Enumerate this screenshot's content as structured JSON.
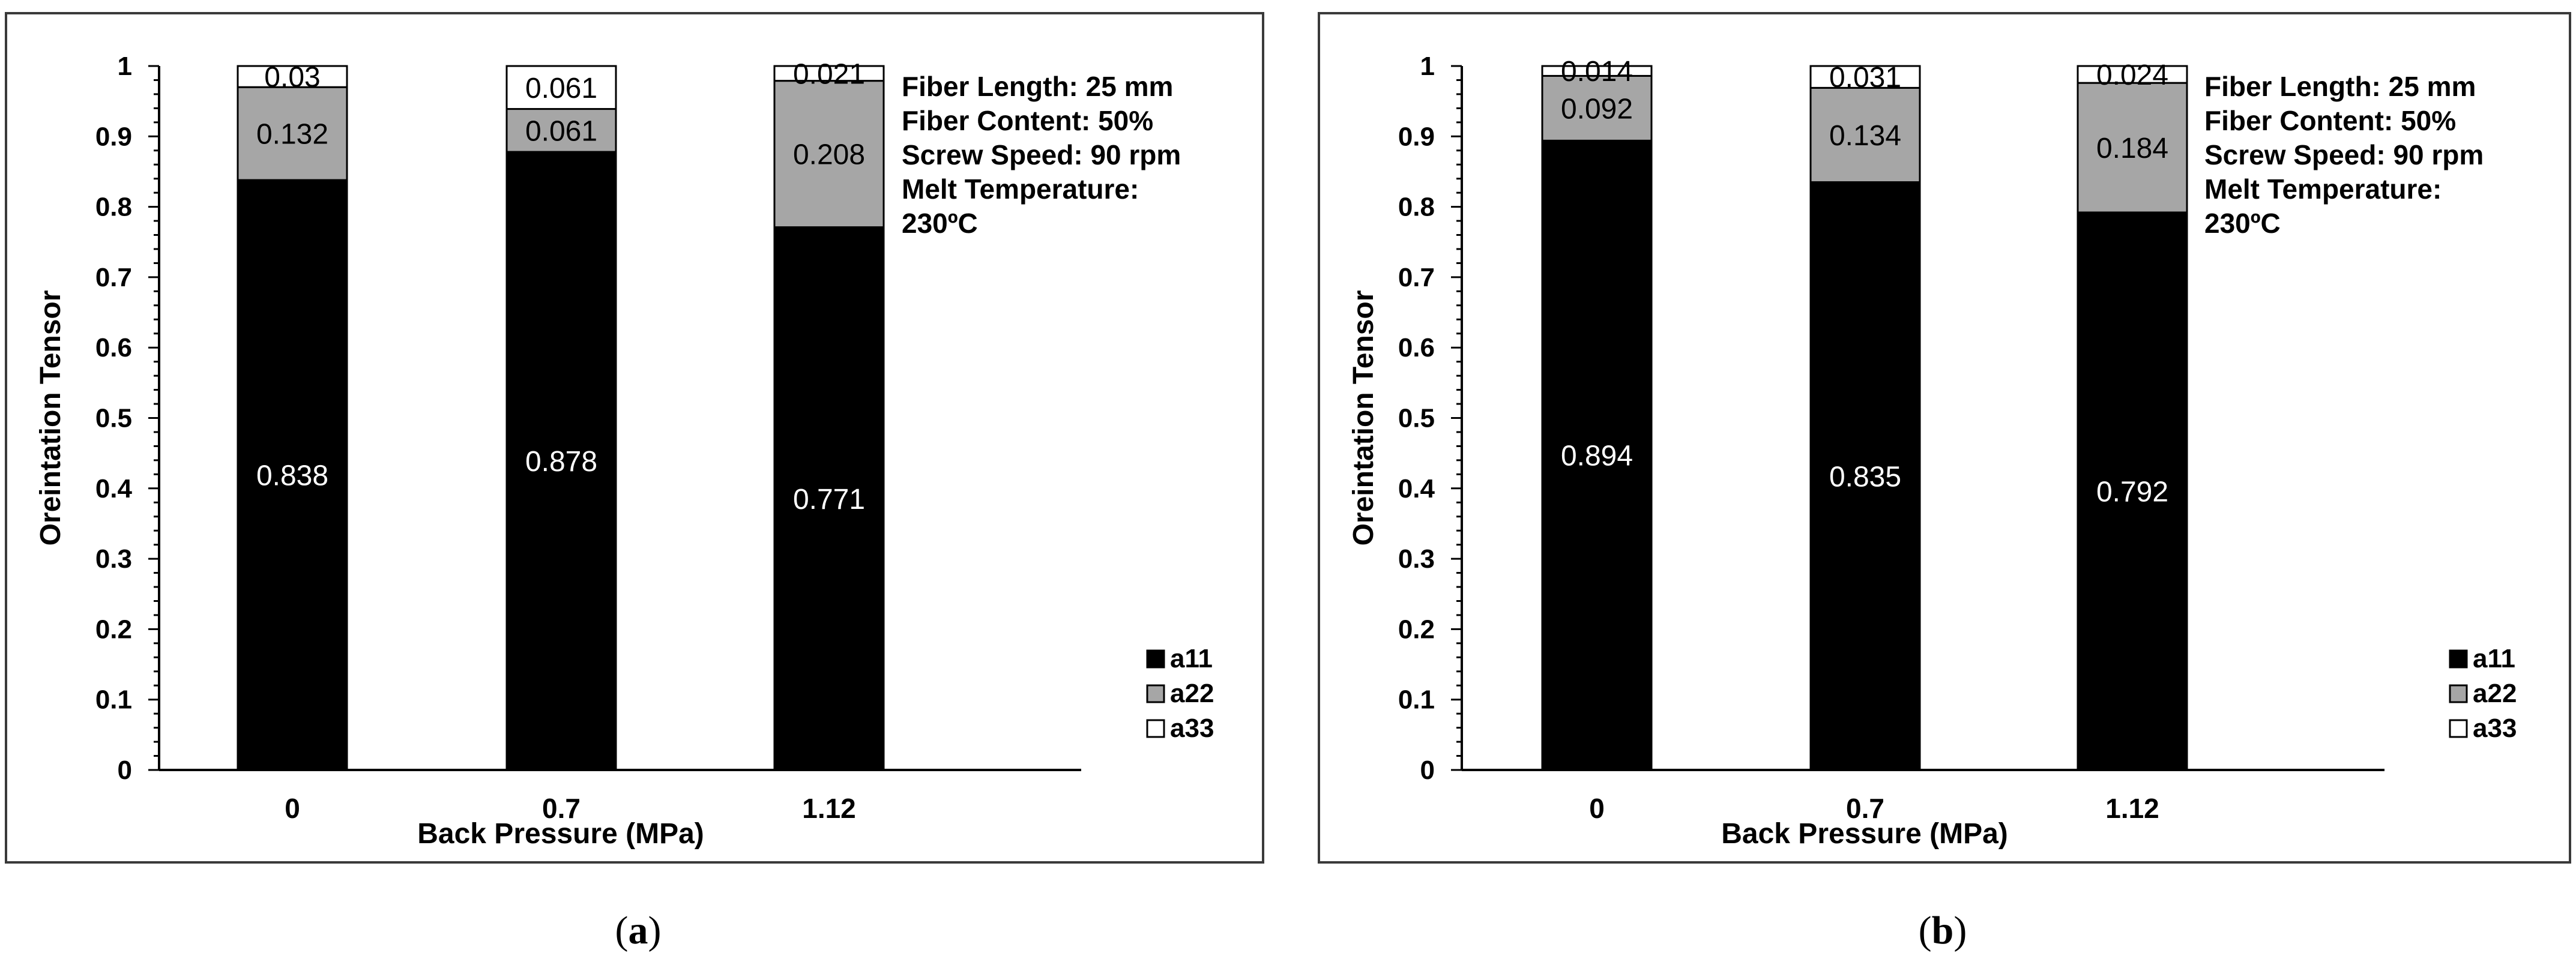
{
  "chart_data": [
    {
      "type": "bar",
      "stacked": true,
      "caption_letter": "a",
      "categories": [
        "0",
        "0.7",
        "1.12"
      ],
      "series": [
        {
          "name": "a11",
          "values": [
            0.838,
            0.878,
            0.771
          ],
          "color": "#000000",
          "label_color": "#ffffff"
        },
        {
          "name": "a22",
          "values": [
            0.132,
            0.061,
            0.208
          ],
          "color": "#a6a6a6",
          "label_color": "#000000"
        },
        {
          "name": "a33",
          "values": [
            0.03,
            0.061,
            0.021
          ],
          "color": "#ffffff",
          "label_color": "#000000"
        }
      ],
      "data_labels": [
        [
          "0.838",
          "0.878",
          "0.771"
        ],
        [
          "0.132",
          "0.061",
          "0.208"
        ],
        [
          "0.03",
          "0.061",
          "0.021"
        ]
      ],
      "xlabel": "Back Pressure (MPa)",
      "ylabel": "Oreintation Tensor",
      "ylim": [
        0,
        1
      ],
      "yticks": [
        "0",
        "0.1",
        "0.2",
        "0.3",
        "0.4",
        "0.5",
        "0.6",
        "0.7",
        "0.8",
        "0.9",
        "1"
      ],
      "grid": false,
      "legend_position": "bottom-right",
      "annotation": [
        "Fiber Length: 25 mm",
        "Fiber Content: 50%",
        "Screw Speed: 90 rpm",
        "Melt Temperature:",
        "230ºC"
      ]
    },
    {
      "type": "bar",
      "stacked": true,
      "caption_letter": "b",
      "categories": [
        "0",
        "0.7",
        "1.12"
      ],
      "series": [
        {
          "name": "a11",
          "values": [
            0.894,
            0.835,
            0.792
          ],
          "color": "#000000",
          "label_color": "#ffffff"
        },
        {
          "name": "a22",
          "values": [
            0.092,
            0.134,
            0.184
          ],
          "color": "#a6a6a6",
          "label_color": "#000000"
        },
        {
          "name": "a33",
          "values": [
            0.014,
            0.031,
            0.024
          ],
          "color": "#ffffff",
          "label_color": "#000000"
        }
      ],
      "data_labels": [
        [
          "0.894",
          "0.835",
          "0.792"
        ],
        [
          "0.092",
          "0.134",
          "0.184"
        ],
        [
          "0.014",
          "0.031",
          "0.024"
        ]
      ],
      "xlabel": "Back Pressure (MPa)",
      "ylabel": "Oreintation Tensor",
      "ylim": [
        0,
        1
      ],
      "yticks": [
        "0",
        "0.1",
        "0.2",
        "0.3",
        "0.4",
        "0.5",
        "0.6",
        "0.7",
        "0.8",
        "0.9",
        "1"
      ],
      "grid": false,
      "legend_position": "bottom-right",
      "annotation": [
        "Fiber Length: 25 mm",
        "Fiber Content: 50%",
        "Screw Speed: 90 rpm",
        "Melt Temperature:",
        "230ºC"
      ]
    }
  ]
}
